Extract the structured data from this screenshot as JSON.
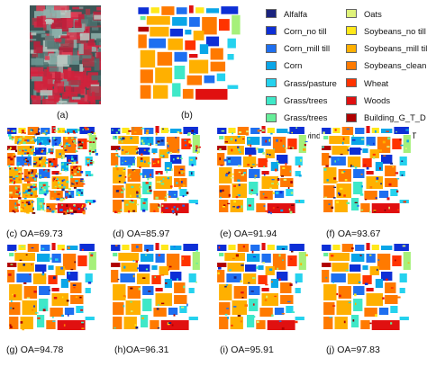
{
  "figure": {
    "panels": [
      {
        "id": "a",
        "caption": "(a)",
        "kind": "false-color"
      },
      {
        "id": "b",
        "caption": "(b)",
        "kind": "ground-truth"
      },
      {
        "id": "c",
        "caption": "(c) OA=69.73",
        "kind": "classification",
        "noise": 0.45
      },
      {
        "id": "d",
        "caption": "(d) OA=85.97",
        "kind": "classification",
        "noise": 0.22
      },
      {
        "id": "e",
        "caption": "(e) OA=91.94",
        "kind": "classification",
        "noise": 0.14
      },
      {
        "id": "f",
        "caption": "(f) OA=93.67",
        "kind": "classification",
        "noise": 0.09
      },
      {
        "id": "g",
        "caption": "(g) OA=94.78",
        "kind": "classification",
        "noise": 0.07
      },
      {
        "id": "h",
        "caption": "(h)OA=96.31",
        "kind": "classification",
        "noise": 0.05
      },
      {
        "id": "i",
        "caption": "(i) OA=95.91",
        "kind": "classification",
        "noise": 0.06
      },
      {
        "id": "j",
        "caption": "(j) OA=97.83",
        "kind": "classification",
        "noise": 0.03
      }
    ],
    "legend": [
      {
        "label": "Alfalfa",
        "color": "#1a237e"
      },
      {
        "label": "Corn_no till",
        "color": "#0d2fd6"
      },
      {
        "label": "Corn_mill till",
        "color": "#1e6ff0"
      },
      {
        "label": "Corn",
        "color": "#0aa6e8"
      },
      {
        "label": "Grass/pasture",
        "color": "#25d2ee"
      },
      {
        "label": "Grass/trees",
        "color": "#3fe8c8"
      },
      {
        "label": "Grass/trees",
        "color": "#66ee99"
      },
      {
        "label": "Hay_windrowed",
        "color": "#a6f07a"
      },
      {
        "label": "Oats",
        "color": "#dff27a"
      },
      {
        "label": "Soybeans_no till",
        "color": "#ffe81a"
      },
      {
        "label": "Soybeans_mill till",
        "color": "#ffb000"
      },
      {
        "label": "Soybeans_clean",
        "color": "#ff7a00"
      },
      {
        "label": "Wheat",
        "color": "#ff3300"
      },
      {
        "label": "Woods",
        "color": "#e01010"
      },
      {
        "label": "Building_G_T_D",
        "color": "#b00000"
      },
      {
        "label": "Stone-steel_T",
        "color": "#6b0000"
      }
    ]
  }
}
